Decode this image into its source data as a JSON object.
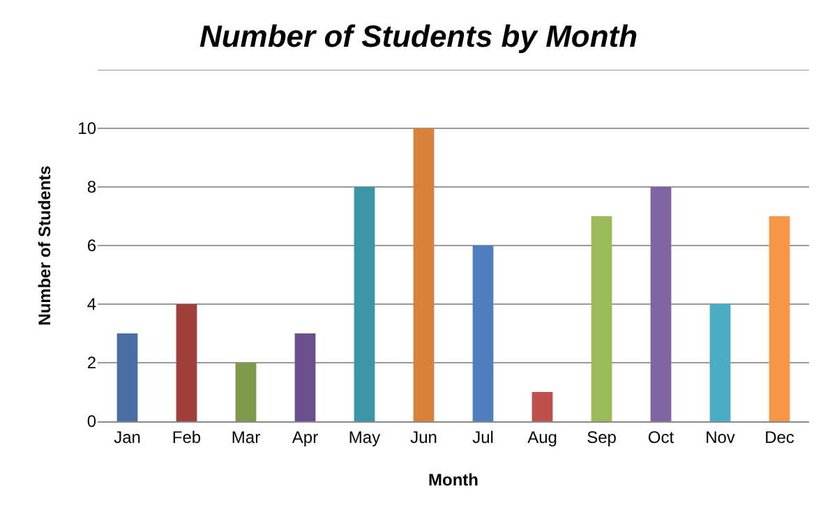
{
  "chart_data": {
    "type": "bar",
    "title": "Number of Students by Month",
    "xlabel": "Month",
    "ylabel": "Number of Students",
    "categories": [
      "Jan",
      "Feb",
      "Mar",
      "Apr",
      "May",
      "Jun",
      "Jul",
      "Aug",
      "Sep",
      "Oct",
      "Nov",
      "Dec"
    ],
    "values": [
      3,
      4,
      2,
      3,
      8,
      10,
      6,
      1,
      7,
      8,
      4,
      7
    ],
    "colors": [
      "#4a6fa5",
      "#a0403d",
      "#7d9a4a",
      "#6a4f8c",
      "#3a95a8",
      "#d7813a",
      "#4f7fc0",
      "#c0504d",
      "#9bbb59",
      "#8064a2",
      "#4bacc6",
      "#f79646"
    ],
    "ylim": [
      0,
      12
    ],
    "yticks": [
      0,
      2,
      4,
      6,
      8,
      10,
      {
        "value": 12,
        "label": null
      }
    ],
    "grid": "y"
  }
}
